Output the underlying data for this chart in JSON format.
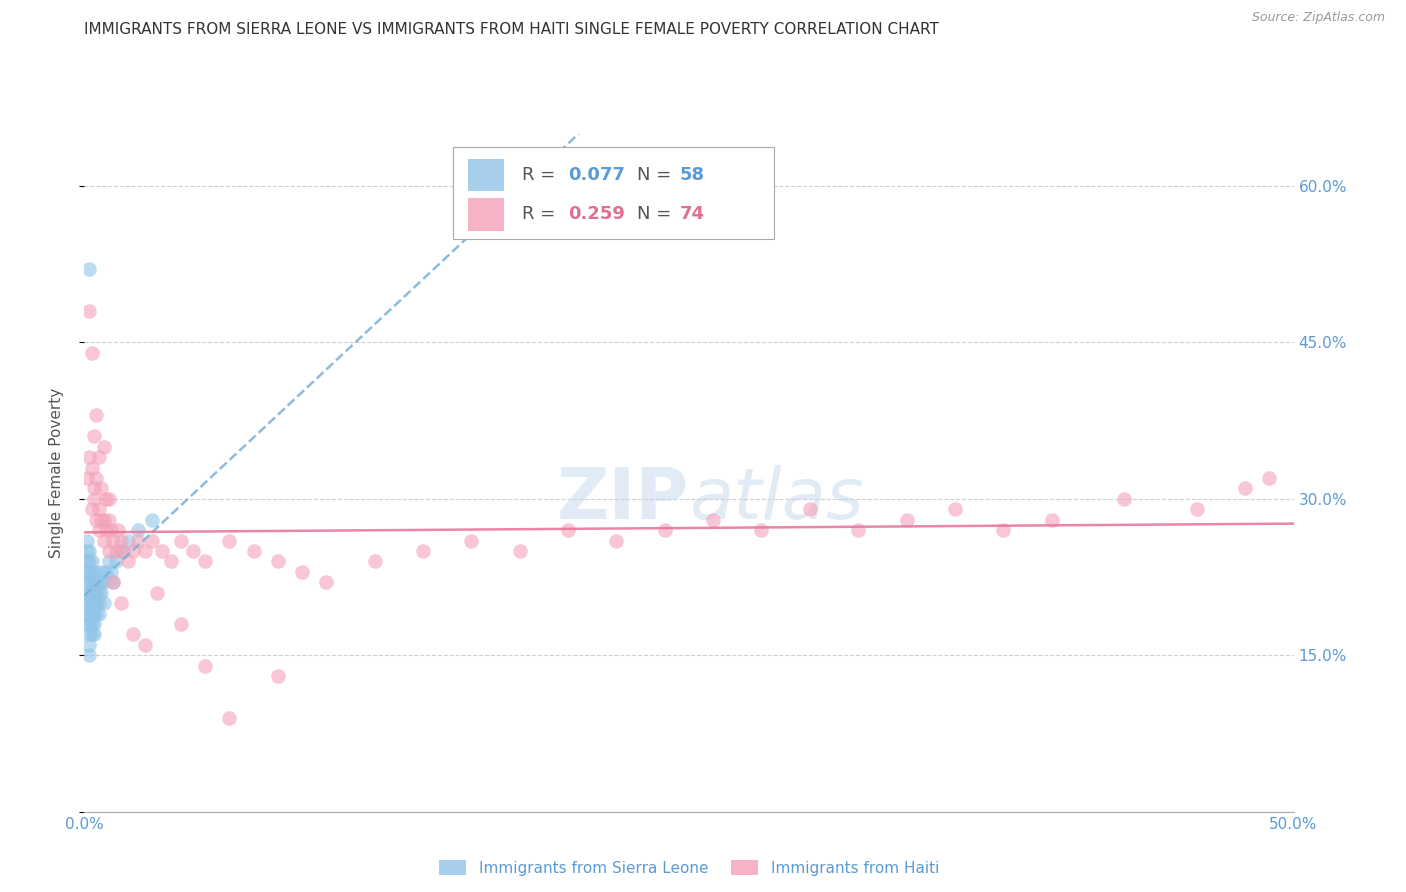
{
  "title": "IMMIGRANTS FROM SIERRA LEONE VS IMMIGRANTS FROM HAITI SINGLE FEMALE POVERTY CORRELATION CHART",
  "source": "Source: ZipAtlas.com",
  "ylabel": "Single Female Poverty",
  "xlim": [
    0.0,
    0.5
  ],
  "ylim": [
    0.0,
    0.65
  ],
  "legend_r1": "R = 0.077",
  "legend_n1": "N = 58",
  "legend_r2": "R = 0.259",
  "legend_n2": "N = 74",
  "color_sl": "#91c4e8",
  "color_haiti": "#f4a0b8",
  "color_sl_line": "#7ab0d8",
  "color_haiti_line": "#e8789a",
  "sl_x": [
    0.001,
    0.001,
    0.001,
    0.001,
    0.001,
    0.001,
    0.001,
    0.001,
    0.001,
    0.002,
    0.002,
    0.002,
    0.002,
    0.002,
    0.002,
    0.002,
    0.002,
    0.002,
    0.002,
    0.002,
    0.003,
    0.003,
    0.003,
    0.003,
    0.003,
    0.003,
    0.003,
    0.003,
    0.004,
    0.004,
    0.004,
    0.004,
    0.004,
    0.004,
    0.005,
    0.005,
    0.005,
    0.005,
    0.005,
    0.006,
    0.006,
    0.006,
    0.006,
    0.007,
    0.007,
    0.007,
    0.008,
    0.008,
    0.009,
    0.01,
    0.011,
    0.012,
    0.013,
    0.015,
    0.018,
    0.022,
    0.028,
    0.002
  ],
  "sl_y": [
    0.22,
    0.23,
    0.24,
    0.25,
    0.26,
    0.2,
    0.19,
    0.18,
    0.21,
    0.2,
    0.22,
    0.23,
    0.19,
    0.18,
    0.17,
    0.21,
    0.24,
    0.25,
    0.16,
    0.15,
    0.22,
    0.2,
    0.19,
    0.18,
    0.17,
    0.21,
    0.23,
    0.24,
    0.21,
    0.2,
    0.19,
    0.22,
    0.18,
    0.17,
    0.22,
    0.21,
    0.2,
    0.19,
    0.23,
    0.21,
    0.2,
    0.22,
    0.19,
    0.22,
    0.21,
    0.23,
    0.22,
    0.2,
    0.23,
    0.24,
    0.23,
    0.22,
    0.24,
    0.25,
    0.26,
    0.27,
    0.28,
    0.52
  ],
  "haiti_x": [
    0.001,
    0.002,
    0.002,
    0.003,
    0.003,
    0.004,
    0.004,
    0.005,
    0.005,
    0.006,
    0.006,
    0.007,
    0.007,
    0.008,
    0.008,
    0.009,
    0.009,
    0.01,
    0.01,
    0.011,
    0.012,
    0.013,
    0.014,
    0.015,
    0.016,
    0.018,
    0.02,
    0.022,
    0.025,
    0.028,
    0.032,
    0.036,
    0.04,
    0.045,
    0.05,
    0.06,
    0.07,
    0.08,
    0.09,
    0.1,
    0.12,
    0.14,
    0.16,
    0.18,
    0.2,
    0.22,
    0.24,
    0.26,
    0.28,
    0.3,
    0.32,
    0.34,
    0.36,
    0.38,
    0.4,
    0.43,
    0.46,
    0.48,
    0.49,
    0.003,
    0.004,
    0.005,
    0.006,
    0.008,
    0.01,
    0.012,
    0.015,
    0.02,
    0.025,
    0.03,
    0.04,
    0.05,
    0.06,
    0.08
  ],
  "haiti_y": [
    0.32,
    0.34,
    0.48,
    0.33,
    0.29,
    0.31,
    0.3,
    0.28,
    0.32,
    0.27,
    0.29,
    0.28,
    0.31,
    0.26,
    0.28,
    0.27,
    0.3,
    0.25,
    0.28,
    0.27,
    0.26,
    0.25,
    0.27,
    0.26,
    0.25,
    0.24,
    0.25,
    0.26,
    0.25,
    0.26,
    0.25,
    0.24,
    0.26,
    0.25,
    0.24,
    0.26,
    0.25,
    0.24,
    0.23,
    0.22,
    0.24,
    0.25,
    0.26,
    0.25,
    0.27,
    0.26,
    0.27,
    0.28,
    0.27,
    0.29,
    0.27,
    0.28,
    0.29,
    0.27,
    0.28,
    0.3,
    0.29,
    0.31,
    0.32,
    0.44,
    0.36,
    0.38,
    0.34,
    0.35,
    0.3,
    0.22,
    0.2,
    0.17,
    0.16,
    0.21,
    0.18,
    0.14,
    0.09,
    0.13
  ]
}
